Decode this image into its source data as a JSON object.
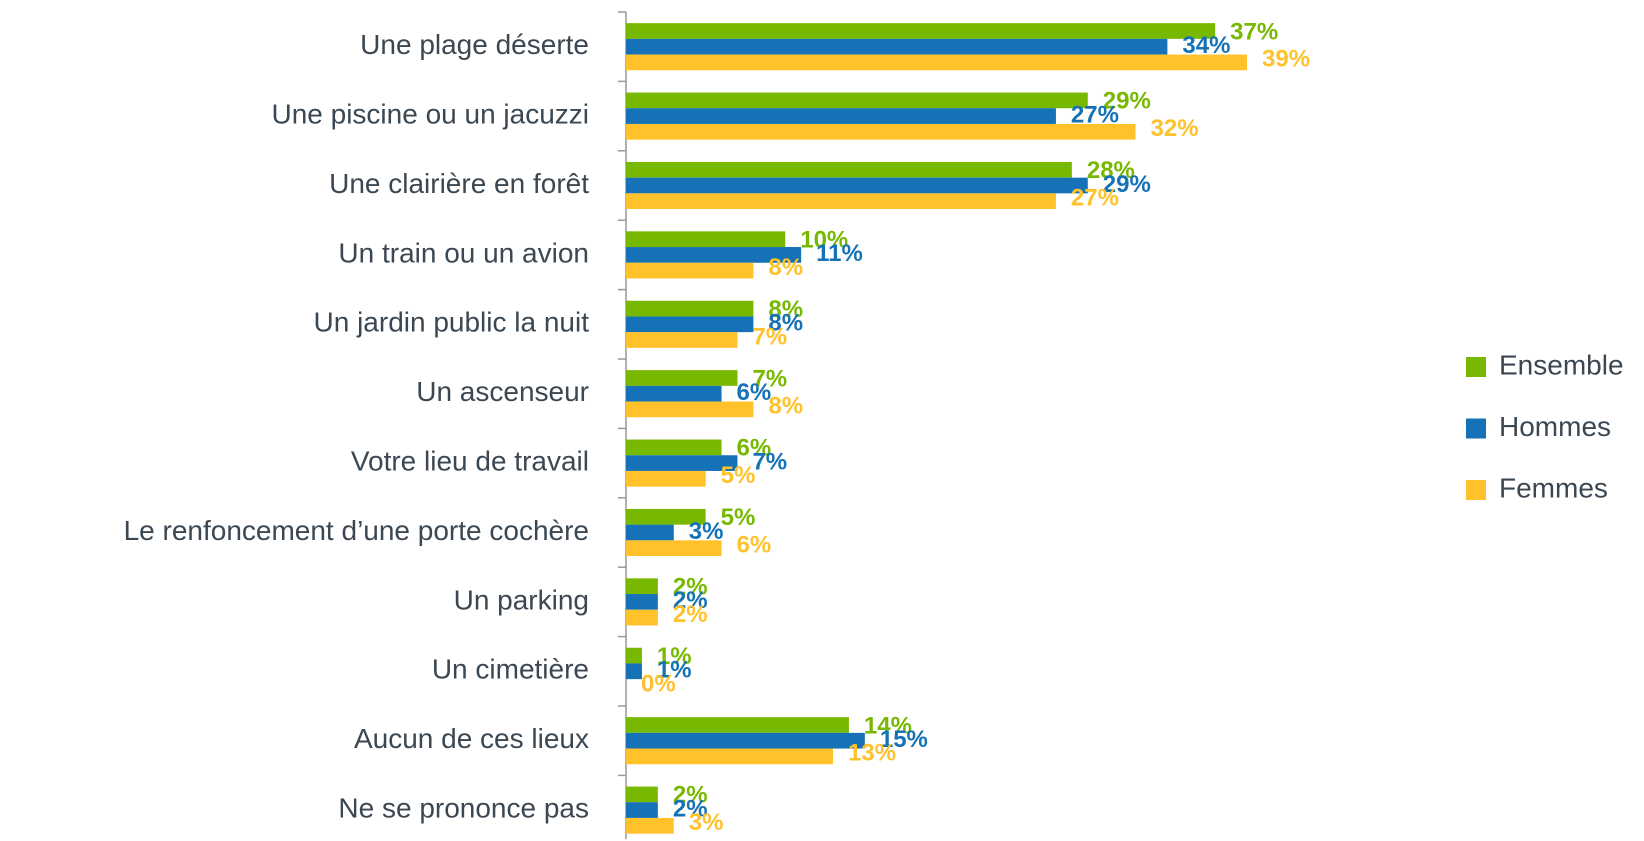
{
  "chart_data": {
    "type": "bar",
    "orientation": "horizontal",
    "categories": [
      "Une plage déserte",
      "Une piscine ou un jacuzzi",
      "Une clairière en forêt",
      "Un train ou un avion",
      "Un jardin public la nuit",
      "Un ascenseur",
      "Votre lieu de travail",
      "Le renfoncement  d’une porte cochère",
      "Un parking",
      "Un cimetière",
      "Aucun de ces lieux",
      "Ne se prononce pas"
    ],
    "series": [
      {
        "name": "Ensemble",
        "color": "#77b800",
        "values": [
          37,
          29,
          28,
          10,
          8,
          7,
          6,
          5,
          2,
          1,
          14,
          2
        ],
        "value_labels": [
          "37%",
          "29%",
          "28%",
          "10%",
          "8%",
          "7%",
          "6%",
          "5%",
          "2%",
          "1%",
          "14%",
          "2%"
        ]
      },
      {
        "name": "Hommes",
        "color": "#1572b6",
        "values": [
          34,
          27,
          29,
          11,
          8,
          6,
          7,
          3,
          2,
          1,
          15,
          2
        ],
        "value_labels": [
          "34%",
          "27%",
          "29%",
          "11%",
          "8%",
          "6%",
          "7%",
          "3%",
          "2%",
          "1%",
          "15%",
          "2%"
        ]
      },
      {
        "name": "Femmes",
        "color": "#ffc22b",
        "values": [
          39,
          32,
          27,
          8,
          7,
          8,
          5,
          6,
          2,
          0,
          13,
          3
        ],
        "value_labels": [
          "39%",
          "32%",
          "27%",
          "8%",
          "7%",
          "8%",
          "5%",
          "6%",
          "2%",
          "0%",
          "13%",
          "3%"
        ]
      }
    ],
    "legend": "right"
  }
}
